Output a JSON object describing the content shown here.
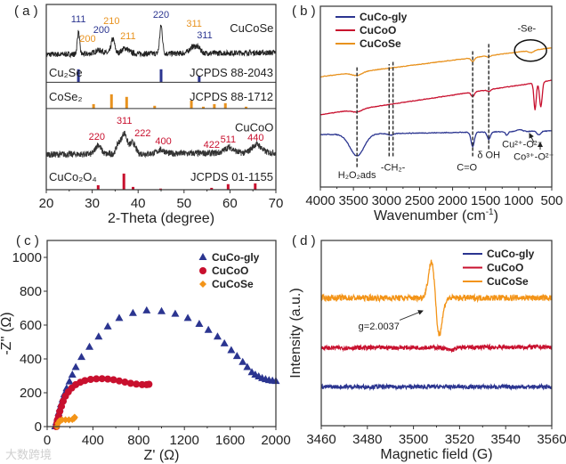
{
  "watermark": "大数跨境",
  "chart_data": [
    {
      "panel_label": "( a )",
      "type": "line",
      "xlabel": "2-Theta (degree)",
      "ylabel": "",
      "xlim": [
        20,
        70
      ],
      "ylim": [
        0,
        100
      ],
      "xticks": [
        "20",
        "30",
        "40",
        "50",
        "60",
        "70"
      ],
      "grid": false,
      "traces": [
        {
          "name": "CuCoSe",
          "color": "#222222",
          "baseline": [
            73,
            74
          ],
          "noise": 3,
          "peaks": [
            [
              27,
              12,
              0.25
            ],
            [
              31.5,
              2,
              1
            ],
            [
              34.5,
              8,
              0.4
            ],
            [
              37.2,
              3,
              0.8
            ],
            [
              45,
              15,
              0.3
            ],
            [
              52,
              3.5,
              0.8
            ],
            [
              53.2,
              2,
              0.5
            ]
          ]
        },
        {
          "name": "CuCoO",
          "color": "#333333",
          "baseline": [
            19,
            20
          ],
          "noise": 3.5,
          "peaks": [
            [
              31.3,
              5,
              0.6
            ],
            [
              35.7,
              5,
              0.5
            ],
            [
              37,
              11,
              0.6
            ],
            [
              38.8,
              6,
              0.6
            ],
            [
              45,
              2,
              0.8
            ],
            [
              59.8,
              3,
              1
            ],
            [
              65.8,
              4.5,
              1
            ]
          ]
        }
      ],
      "sticks": [
        {
          "name": "Cu₂Se",
          "ref": "JCPDS 88-2043",
          "color": "#2b3590",
          "base": 58,
          "label_y": 61,
          "lines": [
            [
              27,
              7
            ],
            [
              45,
              7
            ],
            [
              53.3,
              3.5
            ]
          ]
        },
        {
          "name": "CoSe₂",
          "ref": "JCPDS 88-1712",
          "color": "#e8921e",
          "base": 43.8,
          "label_y": 48,
          "lines": [
            [
              30.3,
              2.4
            ],
            [
              34.2,
              7.7
            ],
            [
              37.5,
              6.3
            ],
            [
              43.6,
              1.5
            ],
            [
              51.6,
              4.3
            ],
            [
              54.2,
              1
            ],
            [
              56.6,
              2.4
            ],
            [
              59,
              2.9
            ],
            [
              63.5,
              1
            ]
          ]
        },
        {
          "name": "CuCo₂O₄",
          "ref": "JCPDS 01-1155",
          "color": "#c8102e",
          "base": 0,
          "label_y": 4.8,
          "lines": [
            [
              31.3,
              2.4
            ],
            [
              36.9,
              8.7
            ],
            [
              38.9,
              1.5
            ],
            [
              44.9,
              0.6
            ],
            [
              56,
              1
            ],
            [
              59.6,
              3
            ],
            [
              65.5,
              3.4
            ]
          ]
        }
      ],
      "dividers": [
        58,
        43.8
      ],
      "sample_labels": [
        {
          "text": "CuCoSe",
          "x": 69.5,
          "y": 85
        },
        {
          "text": "CuCoO",
          "x": 69.5,
          "y": 31.5
        }
      ],
      "annotations": [
        {
          "text": "111",
          "x": 27,
          "y": 90.4,
          "color": "#2b3590"
        },
        {
          "text": "200",
          "x": 29,
          "y": 79.8,
          "color": "#e8921e"
        },
        {
          "text": "200",
          "x": 32,
          "y": 84.6,
          "color": "#2b3590"
        },
        {
          "text": "210",
          "x": 34.2,
          "y": 89.4,
          "color": "#e8921e"
        },
        {
          "text": "211",
          "x": 37.8,
          "y": 81.3,
          "color": "#e8921e"
        },
        {
          "text": "220",
          "x": 45,
          "y": 92.8,
          "color": "#2b3590"
        },
        {
          "text": "311",
          "x": 52.2,
          "y": 88,
          "color": "#e8921e"
        },
        {
          "text": "311",
          "x": 54.5,
          "y": 81.7,
          "color": "#2b3590"
        },
        {
          "text": "220",
          "x": 31,
          "y": 26.9,
          "color": "#c8102e"
        },
        {
          "text": "311",
          "x": 37,
          "y": 35.6,
          "color": "#c8102e"
        },
        {
          "text": "222",
          "x": 41,
          "y": 28.8,
          "color": "#c8102e"
        },
        {
          "text": "400",
          "x": 45.5,
          "y": 24.5,
          "color": "#c8102e"
        },
        {
          "text": "422",
          "x": 56,
          "y": 22.6,
          "color": "#c8102e"
        },
        {
          "text": "511",
          "x": 59.6,
          "y": 25.5,
          "color": "#c8102e"
        },
        {
          "text": "440",
          "x": 65.6,
          "y": 26.4,
          "color": "#c8102e"
        }
      ]
    },
    {
      "panel_label": "( b )",
      "type": "line",
      "xlabel": "Wavenumber (cm",
      "xlabel_sup": "-1",
      "xlabel_end": ")",
      "xlim": [
        4000,
        400
      ],
      "ylim": [
        0,
        100
      ],
      "xticks": [
        "4000",
        "3500",
        "3000",
        "2500",
        "2000",
        "1500",
        "1000",
        "500"
      ],
      "legend": {
        "position": "top-left"
      },
      "traces": [
        {
          "name": "CuCo-gly",
          "color": "#2b3590",
          "baseline": [
            29,
            31
          ],
          "noise": 0.4,
          "peaks": [
            [
              3430,
              -12,
              110
            ],
            [
              2900,
              -1,
              40
            ],
            [
              1630,
              -8,
              25
            ],
            [
              1380,
              -4,
              25
            ],
            [
              1100,
              -2,
              20
            ],
            [
              900,
              1,
              40
            ],
            [
              600,
              -2,
              30
            ]
          ]
        },
        {
          "name": "CuCoO",
          "color": "#c8102e",
          "baseline": [
            40,
            59
          ],
          "noise": 0.3,
          "peaks": [
            [
              3430,
              -1.5,
              80
            ],
            [
              1630,
              -2.5,
              25
            ],
            [
              1380,
              -1,
              25
            ],
            [
              660,
              -15,
              18
            ],
            [
              570,
              -14,
              20
            ]
          ]
        },
        {
          "name": "CuCoSe",
          "color": "#e8921e",
          "baseline": [
            61,
            77
          ],
          "noise": 0.3,
          "peaks": [
            [
              3430,
              -1.8,
              80
            ],
            [
              1630,
              -2.2,
              25
            ],
            [
              1380,
              -0.8,
              25
            ],
            [
              720,
              -1.2,
              40
            ]
          ]
        }
      ],
      "dashed_lines": [
        {
          "x": 3430,
          "y": [
            11,
            67
          ]
        },
        {
          "x": 2930,
          "y": [
            17,
            68
          ]
        },
        {
          "x": 2870,
          "y": [
            17,
            70
          ]
        },
        {
          "x": 1630,
          "y": [
            17,
            76
          ]
        },
        {
          "x": 1380,
          "y": [
            21,
            80
          ]
        }
      ],
      "circle": {
        "x": 730,
        "y": 75.5
      },
      "annotations": [
        {
          "text": "-Se-",
          "x": 790,
          "y": 86
        },
        {
          "text": "H₂O₂ads",
          "x": 3430,
          "y": 5
        },
        {
          "text": "-CH₂-",
          "x": 2870,
          "y": 9
        },
        {
          "text": "C=O",
          "x": 1720,
          "y": 9
        },
        {
          "text": "δ OH",
          "x": 1380,
          "y": 16
        },
        {
          "text": "Cu²⁺-O²⁻",
          "x": 860,
          "y": 22
        },
        {
          "text": "Co³⁺-O²⁻",
          "x": 680,
          "y": 15
        }
      ]
    },
    {
      "panel_label": "( c )",
      "type": "scatter",
      "xlabel": "Z' (Ω)",
      "ylabel": "-Z'' (Ω)",
      "xlim": [
        0,
        2000
      ],
      "ylim": [
        0,
        1100
      ],
      "xticks": [
        "0",
        "400",
        "800",
        "1200",
        "1600",
        "2000"
      ],
      "yticks": [
        "0",
        "200",
        "400",
        "600",
        "800",
        "1000"
      ],
      "legend": {
        "position": "top-right"
      },
      "series": [
        {
          "name": "CuCo-gly",
          "color": "#2b3590",
          "marker": "triangle",
          "points": [
            [
              70,
              0
            ],
            [
              80,
              25
            ],
            [
              90,
              50
            ],
            [
              100,
              80
            ],
            [
              110,
              105
            ],
            [
              120,
              130
            ],
            [
              135,
              160
            ],
            [
              150,
              190
            ],
            [
              170,
              225
            ],
            [
              195,
              265
            ],
            [
              220,
              305
            ],
            [
              250,
              350
            ],
            [
              300,
              410
            ],
            [
              370,
              470
            ],
            [
              450,
              530
            ],
            [
              530,
              590
            ],
            [
              630,
              640
            ],
            [
              750,
              670
            ],
            [
              870,
              685
            ],
            [
              1000,
              680
            ],
            [
              1120,
              665
            ],
            [
              1230,
              640
            ],
            [
              1330,
              605
            ],
            [
              1410,
              570
            ],
            [
              1490,
              530
            ],
            [
              1550,
              490
            ],
            [
              1610,
              450
            ],
            [
              1660,
              415
            ],
            [
              1710,
              380
            ],
            [
              1750,
              350
            ],
            [
              1790,
              320
            ],
            [
              1820,
              305
            ],
            [
              1850,
              295
            ],
            [
              1880,
              285
            ],
            [
              1910,
              278
            ],
            [
              1940,
              273
            ],
            [
              1970,
              270
            ],
            [
              2000,
              268
            ]
          ]
        },
        {
          "name": "CuCoO",
          "color": "#c8102e",
          "marker": "circle",
          "points": [
            [
              80,
              0
            ],
            [
              85,
              20
            ],
            [
              90,
              40
            ],
            [
              100,
              60
            ],
            [
              110,
              90
            ],
            [
              125,
              120
            ],
            [
              140,
              150
            ],
            [
              160,
              180
            ],
            [
              185,
              205
            ],
            [
              215,
              228
            ],
            [
              250,
              248
            ],
            [
              290,
              262
            ],
            [
              330,
              272
            ],
            [
              380,
              279
            ],
            [
              430,
              282
            ],
            [
              480,
              283
            ],
            [
              530,
              281
            ],
            [
              580,
              277
            ],
            [
              630,
              270
            ],
            [
              680,
              263
            ],
            [
              730,
              256
            ],
            [
              780,
              251
            ],
            [
              830,
              248
            ],
            [
              870,
              248
            ],
            [
              890,
              250
            ]
          ]
        },
        {
          "name": "CuCoSe",
          "color": "#f39418",
          "marker": "diamond",
          "points": [
            [
              85,
              0
            ],
            [
              95,
              20
            ],
            [
              110,
              35
            ],
            [
              130,
              40
            ],
            [
              160,
              40
            ],
            [
              190,
              40
            ],
            [
              220,
              42
            ],
            [
              235,
              48
            ],
            [
              240,
              55
            ]
          ]
        }
      ]
    },
    {
      "panel_label": "( d )",
      "type": "line",
      "xlabel": "Magnetic field (G)",
      "ylabel": "Intensity (a.u.)",
      "xlim": [
        3460,
        3560
      ],
      "ylim": [
        0,
        100
      ],
      "xticks": [
        "3460",
        "3480",
        "3500",
        "3520",
        "3540",
        "3560"
      ],
      "legend": {
        "position": "top-right"
      },
      "traces": [
        {
          "name": "CuCo-gly",
          "color": "#2b3590",
          "baseline": [
            21,
            21
          ],
          "noise": 2.2,
          "peaks": []
        },
        {
          "name": "CuCoO",
          "color": "#c8102e",
          "baseline": [
            42,
            42.5
          ],
          "noise": 2.4,
          "peaks": [
            [
              3516,
              -1.5,
              2
            ]
          ]
        },
        {
          "name": "CuCoSe",
          "color": "#f39418",
          "baseline": [
            69,
            69
          ],
          "noise": 3.2,
          "deriv": [
            3509.5,
            19.5,
            1.7
          ]
        }
      ],
      "annotations": [
        {
          "text": "g=2.0037",
          "x": 3485,
          "y": 52
        }
      ],
      "arrow": {
        "from": [
          3494,
          57
        ],
        "to": [
          3504,
          62
        ]
      }
    }
  ]
}
